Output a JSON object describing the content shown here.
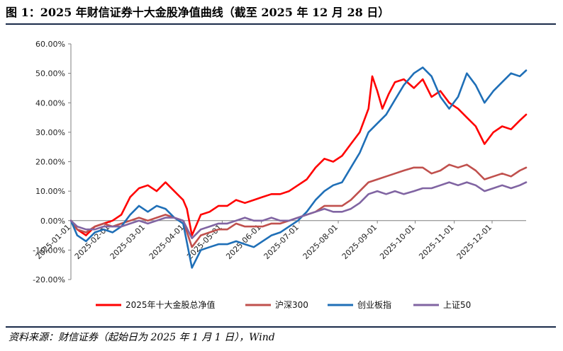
{
  "title": "图 1：2025 年财信证券十大金股净值曲线（截至 2025 年 12 月 28 日）",
  "source": "资料来源：财信证券（起始日为 2025 年 1 月 1 日），Wind",
  "chart_data": {
    "type": "line",
    "ylim": [
      -0.2,
      0.6
    ],
    "yticks": [
      "-20.00%",
      "-10.00%",
      "0.00%",
      "10.00%",
      "20.00%",
      "30.00%",
      "40.00%",
      "50.00%",
      "60.00%"
    ],
    "xlim": [
      "2025-01-01",
      "2025-12-28"
    ],
    "xticks": [
      "2025-01-01",
      "2025-02-01",
      "2025-03-01",
      "2025-04-01",
      "2025-05-01",
      "2025-06-01",
      "2025-07-01",
      "2025-08-01",
      "2025-09-01",
      "2025-10-01",
      "2025-11-01",
      "2025-12-01"
    ],
    "grid": false,
    "legend": "bottom",
    "series": [
      {
        "name": "2025年十大金股总净值",
        "color": "#ff0000",
        "points": [
          [
            "2025-01-01",
            0.0
          ],
          [
            "2025-01-06",
            -0.03
          ],
          [
            "2025-01-13",
            -0.05
          ],
          [
            "2025-01-20",
            -0.02
          ],
          [
            "2025-01-27",
            -0.01
          ],
          [
            "2025-02-03",
            0.0
          ],
          [
            "2025-02-10",
            0.02
          ],
          [
            "2025-02-17",
            0.08
          ],
          [
            "2025-02-24",
            0.11
          ],
          [
            "2025-03-03",
            0.12
          ],
          [
            "2025-03-10",
            0.1
          ],
          [
            "2025-03-17",
            0.13
          ],
          [
            "2025-03-24",
            0.1
          ],
          [
            "2025-03-31",
            0.07
          ],
          [
            "2025-04-03",
            0.04
          ],
          [
            "2025-04-07",
            -0.05
          ],
          [
            "2025-04-14",
            0.02
          ],
          [
            "2025-04-21",
            0.03
          ],
          [
            "2025-04-28",
            0.05
          ],
          [
            "2025-05-05",
            0.05
          ],
          [
            "2025-05-12",
            0.07
          ],
          [
            "2025-05-19",
            0.06
          ],
          [
            "2025-05-26",
            0.07
          ],
          [
            "2025-06-02",
            0.08
          ],
          [
            "2025-06-09",
            0.09
          ],
          [
            "2025-06-16",
            0.09
          ],
          [
            "2025-06-23",
            0.1
          ],
          [
            "2025-06-30",
            0.12
          ],
          [
            "2025-07-07",
            0.14
          ],
          [
            "2025-07-14",
            0.18
          ],
          [
            "2025-07-21",
            0.21
          ],
          [
            "2025-07-28",
            0.2
          ],
          [
            "2025-08-04",
            0.22
          ],
          [
            "2025-08-11",
            0.26
          ],
          [
            "2025-08-18",
            0.3
          ],
          [
            "2025-08-25",
            0.38
          ],
          [
            "2025-08-28",
            0.49
          ],
          [
            "2025-09-01",
            0.44
          ],
          [
            "2025-09-05",
            0.38
          ],
          [
            "2025-09-10",
            0.43
          ],
          [
            "2025-09-15",
            0.47
          ],
          [
            "2025-09-22",
            0.48
          ],
          [
            "2025-09-30",
            0.45
          ],
          [
            "2025-10-07",
            0.48
          ],
          [
            "2025-10-14",
            0.42
          ],
          [
            "2025-10-21",
            0.44
          ],
          [
            "2025-10-28",
            0.4
          ],
          [
            "2025-11-04",
            0.38
          ],
          [
            "2025-11-11",
            0.35
          ],
          [
            "2025-11-18",
            0.32
          ],
          [
            "2025-11-25",
            0.26
          ],
          [
            "2025-12-02",
            0.3
          ],
          [
            "2025-12-09",
            0.32
          ],
          [
            "2025-12-16",
            0.31
          ],
          [
            "2025-12-23",
            0.34
          ],
          [
            "2025-12-28",
            0.36
          ]
        ]
      },
      {
        "name": "沪深300",
        "color": "#c0504d",
        "points": [
          [
            "2025-01-01",
            0.0
          ],
          [
            "2025-01-06",
            -0.03
          ],
          [
            "2025-01-13",
            -0.04
          ],
          [
            "2025-01-20",
            -0.02
          ],
          [
            "2025-01-27",
            -0.01
          ],
          [
            "2025-02-03",
            -0.02
          ],
          [
            "2025-02-10",
            -0.01
          ],
          [
            "2025-02-17",
            0.0
          ],
          [
            "2025-02-24",
            0.01
          ],
          [
            "2025-03-03",
            0.0
          ],
          [
            "2025-03-10",
            0.01
          ],
          [
            "2025-03-17",
            0.02
          ],
          [
            "2025-03-24",
            0.01
          ],
          [
            "2025-03-31",
            0.0
          ],
          [
            "2025-04-07",
            -0.09
          ],
          [
            "2025-04-14",
            -0.05
          ],
          [
            "2025-04-21",
            -0.04
          ],
          [
            "2025-04-28",
            -0.03
          ],
          [
            "2025-05-05",
            -0.03
          ],
          [
            "2025-05-12",
            -0.01
          ],
          [
            "2025-05-19",
            -0.02
          ],
          [
            "2025-05-26",
            -0.02
          ],
          [
            "2025-06-02",
            -0.02
          ],
          [
            "2025-06-09",
            -0.01
          ],
          [
            "2025-06-16",
            -0.01
          ],
          [
            "2025-06-23",
            0.0
          ],
          [
            "2025-06-30",
            0.01
          ],
          [
            "2025-07-07",
            0.02
          ],
          [
            "2025-07-14",
            0.03
          ],
          [
            "2025-07-21",
            0.05
          ],
          [
            "2025-07-28",
            0.05
          ],
          [
            "2025-08-04",
            0.05
          ],
          [
            "2025-08-11",
            0.07
          ],
          [
            "2025-08-18",
            0.1
          ],
          [
            "2025-08-25",
            0.13
          ],
          [
            "2025-09-01",
            0.14
          ],
          [
            "2025-09-08",
            0.15
          ],
          [
            "2025-09-15",
            0.16
          ],
          [
            "2025-09-22",
            0.17
          ],
          [
            "2025-09-30",
            0.18
          ],
          [
            "2025-10-07",
            0.18
          ],
          [
            "2025-10-14",
            0.16
          ],
          [
            "2025-10-21",
            0.17
          ],
          [
            "2025-10-28",
            0.19
          ],
          [
            "2025-11-04",
            0.18
          ],
          [
            "2025-11-11",
            0.19
          ],
          [
            "2025-11-18",
            0.17
          ],
          [
            "2025-11-25",
            0.14
          ],
          [
            "2025-12-02",
            0.15
          ],
          [
            "2025-12-09",
            0.16
          ],
          [
            "2025-12-16",
            0.15
          ],
          [
            "2025-12-23",
            0.17
          ],
          [
            "2025-12-28",
            0.18
          ]
        ]
      },
      {
        "name": "创业板指",
        "color": "#1f6fb7",
        "points": [
          [
            "2025-01-01",
            0.0
          ],
          [
            "2025-01-06",
            -0.05
          ],
          [
            "2025-01-13",
            -0.07
          ],
          [
            "2025-01-20",
            -0.04
          ],
          [
            "2025-01-27",
            -0.03
          ],
          [
            "2025-02-03",
            -0.04
          ],
          [
            "2025-02-10",
            -0.02
          ],
          [
            "2025-02-17",
            0.02
          ],
          [
            "2025-02-24",
            0.05
          ],
          [
            "2025-03-03",
            0.03
          ],
          [
            "2025-03-10",
            0.05
          ],
          [
            "2025-03-17",
            0.04
          ],
          [
            "2025-03-24",
            0.01
          ],
          [
            "2025-03-31",
            -0.01
          ],
          [
            "2025-04-07",
            -0.16
          ],
          [
            "2025-04-14",
            -0.1
          ],
          [
            "2025-04-21",
            -0.09
          ],
          [
            "2025-04-28",
            -0.08
          ],
          [
            "2025-05-05",
            -0.08
          ],
          [
            "2025-05-12",
            -0.07
          ],
          [
            "2025-05-19",
            -0.08
          ],
          [
            "2025-05-26",
            -0.09
          ],
          [
            "2025-06-02",
            -0.07
          ],
          [
            "2025-06-09",
            -0.05
          ],
          [
            "2025-06-16",
            -0.04
          ],
          [
            "2025-06-23",
            -0.02
          ],
          [
            "2025-06-30",
            0.0
          ],
          [
            "2025-07-07",
            0.03
          ],
          [
            "2025-07-14",
            0.07
          ],
          [
            "2025-07-21",
            0.1
          ],
          [
            "2025-07-28",
            0.12
          ],
          [
            "2025-08-04",
            0.13
          ],
          [
            "2025-08-11",
            0.18
          ],
          [
            "2025-08-18",
            0.23
          ],
          [
            "2025-08-25",
            0.3
          ],
          [
            "2025-09-01",
            0.33
          ],
          [
            "2025-09-08",
            0.36
          ],
          [
            "2025-09-15",
            0.41
          ],
          [
            "2025-09-22",
            0.46
          ],
          [
            "2025-09-30",
            0.5
          ],
          [
            "2025-10-07",
            0.52
          ],
          [
            "2025-10-14",
            0.49
          ],
          [
            "2025-10-21",
            0.42
          ],
          [
            "2025-10-28",
            0.38
          ],
          [
            "2025-11-04",
            0.42
          ],
          [
            "2025-11-11",
            0.5
          ],
          [
            "2025-11-18",
            0.46
          ],
          [
            "2025-11-25",
            0.4
          ],
          [
            "2025-12-02",
            0.44
          ],
          [
            "2025-12-09",
            0.47
          ],
          [
            "2025-12-16",
            0.5
          ],
          [
            "2025-12-23",
            0.49
          ],
          [
            "2025-12-28",
            0.51
          ]
        ]
      },
      {
        "name": "上证50",
        "color": "#8064a2",
        "points": [
          [
            "2025-01-01",
            0.0
          ],
          [
            "2025-01-06",
            -0.02
          ],
          [
            "2025-01-13",
            -0.03
          ],
          [
            "2025-01-20",
            -0.03
          ],
          [
            "2025-01-27",
            -0.02
          ],
          [
            "2025-02-03",
            -0.02
          ],
          [
            "2025-02-10",
            -0.02
          ],
          [
            "2025-02-17",
            -0.01
          ],
          [
            "2025-02-24",
            0.0
          ],
          [
            "2025-03-03",
            -0.01
          ],
          [
            "2025-03-10",
            0.0
          ],
          [
            "2025-03-17",
            0.01
          ],
          [
            "2025-03-24",
            0.01
          ],
          [
            "2025-03-31",
            0.0
          ],
          [
            "2025-04-07",
            -0.06
          ],
          [
            "2025-04-14",
            -0.03
          ],
          [
            "2025-04-21",
            -0.02
          ],
          [
            "2025-04-28",
            -0.01
          ],
          [
            "2025-05-05",
            -0.01
          ],
          [
            "2025-05-12",
            0.0
          ],
          [
            "2025-05-19",
            0.01
          ],
          [
            "2025-05-26",
            0.0
          ],
          [
            "2025-06-02",
            0.0
          ],
          [
            "2025-06-09",
            0.01
          ],
          [
            "2025-06-16",
            0.0
          ],
          [
            "2025-06-23",
            0.0
          ],
          [
            "2025-06-30",
            0.01
          ],
          [
            "2025-07-07",
            0.02
          ],
          [
            "2025-07-14",
            0.03
          ],
          [
            "2025-07-21",
            0.04
          ],
          [
            "2025-07-28",
            0.03
          ],
          [
            "2025-08-04",
            0.03
          ],
          [
            "2025-08-11",
            0.04
          ],
          [
            "2025-08-18",
            0.06
          ],
          [
            "2025-08-25",
            0.09
          ],
          [
            "2025-09-01",
            0.1
          ],
          [
            "2025-09-08",
            0.09
          ],
          [
            "2025-09-15",
            0.1
          ],
          [
            "2025-09-22",
            0.09
          ],
          [
            "2025-09-30",
            0.1
          ],
          [
            "2025-10-07",
            0.11
          ],
          [
            "2025-10-14",
            0.11
          ],
          [
            "2025-10-21",
            0.12
          ],
          [
            "2025-10-28",
            0.13
          ],
          [
            "2025-11-04",
            0.12
          ],
          [
            "2025-11-11",
            0.13
          ],
          [
            "2025-11-18",
            0.12
          ],
          [
            "2025-11-25",
            0.1
          ],
          [
            "2025-12-02",
            0.11
          ],
          [
            "2025-12-09",
            0.12
          ],
          [
            "2025-12-16",
            0.11
          ],
          [
            "2025-12-23",
            0.12
          ],
          [
            "2025-12-28",
            0.13
          ]
        ]
      }
    ]
  }
}
